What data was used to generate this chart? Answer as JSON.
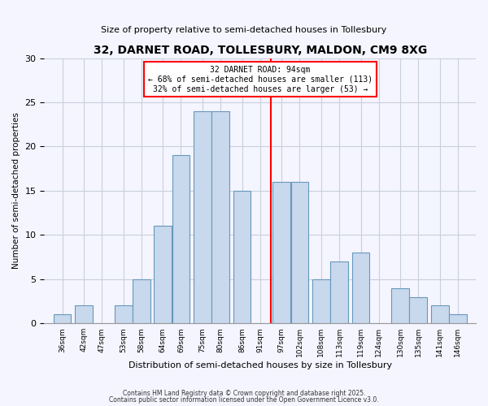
{
  "title": "32, DARNET ROAD, TOLLESBURY, MALDON, CM9 8XG",
  "subtitle": "Size of property relative to semi-detached houses in Tollesbury",
  "xlabel": "Distribution of semi-detached houses by size in Tollesbury",
  "ylabel": "Number of semi-detached properties",
  "bar_color": "#c8d8ed",
  "bar_edge_color": "#6699bb",
  "bin_labels": [
    "36sqm",
    "42sqm",
    "47sqm",
    "53sqm",
    "58sqm",
    "64sqm",
    "69sqm",
    "75sqm",
    "80sqm",
    "86sqm",
    "91sqm",
    "97sqm",
    "102sqm",
    "108sqm",
    "113sqm",
    "119sqm",
    "124sqm",
    "130sqm",
    "135sqm",
    "141sqm",
    "146sqm"
  ],
  "bin_centers": [
    36,
    42,
    47,
    53,
    58,
    64,
    69,
    75,
    80,
    86,
    91,
    97,
    102,
    108,
    113,
    119,
    124,
    130,
    135,
    141,
    146
  ],
  "bin_width": 5,
  "counts": [
    1,
    2,
    0,
    2,
    5,
    11,
    19,
    24,
    24,
    15,
    0,
    16,
    16,
    5,
    7,
    8,
    0,
    4,
    3,
    2,
    1
  ],
  "vline_x": 94,
  "vline_color": "red",
  "annotation_text": "32 DARNET ROAD: 94sqm\n← 68% of semi-detached houses are smaller (113)\n32% of semi-detached houses are larger (53) →",
  "annotation_box_color": "white",
  "annotation_border_color": "red",
  "ylim": [
    0,
    30
  ],
  "yticks": [
    0,
    5,
    10,
    15,
    20,
    25,
    30
  ],
  "footer1": "Contains HM Land Registry data © Crown copyright and database right 2025.",
  "footer2": "Contains public sector information licensed under the Open Government Licence v3.0.",
  "bg_color": "#f5f5ff",
  "grid_color": "#c8d0dc"
}
